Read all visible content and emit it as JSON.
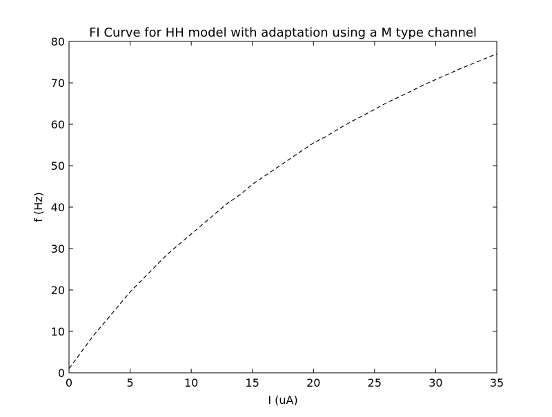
{
  "chart_data": {
    "type": "line",
    "title": "FI Curve for HH model with adaptation using a M type channel",
    "xlabel": "I (uA)",
    "ylabel": "f (Hz)",
    "xlim": [
      0,
      35
    ],
    "ylim": [
      0,
      80
    ],
    "xticks": [
      0,
      5,
      10,
      15,
      20,
      25,
      30,
      35
    ],
    "yticks": [
      0,
      10,
      20,
      30,
      40,
      50,
      60,
      70,
      80
    ],
    "xtick_labels": [
      "0",
      "5",
      "10",
      "15",
      "20",
      "25",
      "30",
      "35"
    ],
    "ytick_labels": [
      "0",
      "10",
      "20",
      "30",
      "40",
      "50",
      "60",
      "70",
      "80"
    ],
    "grid": false,
    "legend": false,
    "series": [
      {
        "line_style": "dashed",
        "color": "#000000",
        "x": [
          0,
          1,
          2,
          3,
          4,
          5,
          6,
          7,
          8,
          9,
          10,
          11,
          12,
          13,
          14,
          15,
          16,
          17,
          18,
          19,
          20,
          21,
          22,
          23,
          24,
          25,
          26,
          27,
          28,
          29,
          30,
          31,
          32,
          33,
          34,
          35
        ],
        "y": [
          1,
          5,
          9,
          12.5,
          16,
          19.5,
          22.5,
          25.5,
          28.5,
          31,
          33.5,
          36,
          38.5,
          41,
          43,
          45.5,
          47.5,
          49.5,
          51.5,
          53.5,
          55.5,
          57,
          58.8,
          60.5,
          62,
          63.6,
          65.2,
          66.6,
          68,
          69.5,
          70.8,
          72.1,
          73.4,
          74.6,
          75.8,
          77
        ]
      }
    ]
  }
}
